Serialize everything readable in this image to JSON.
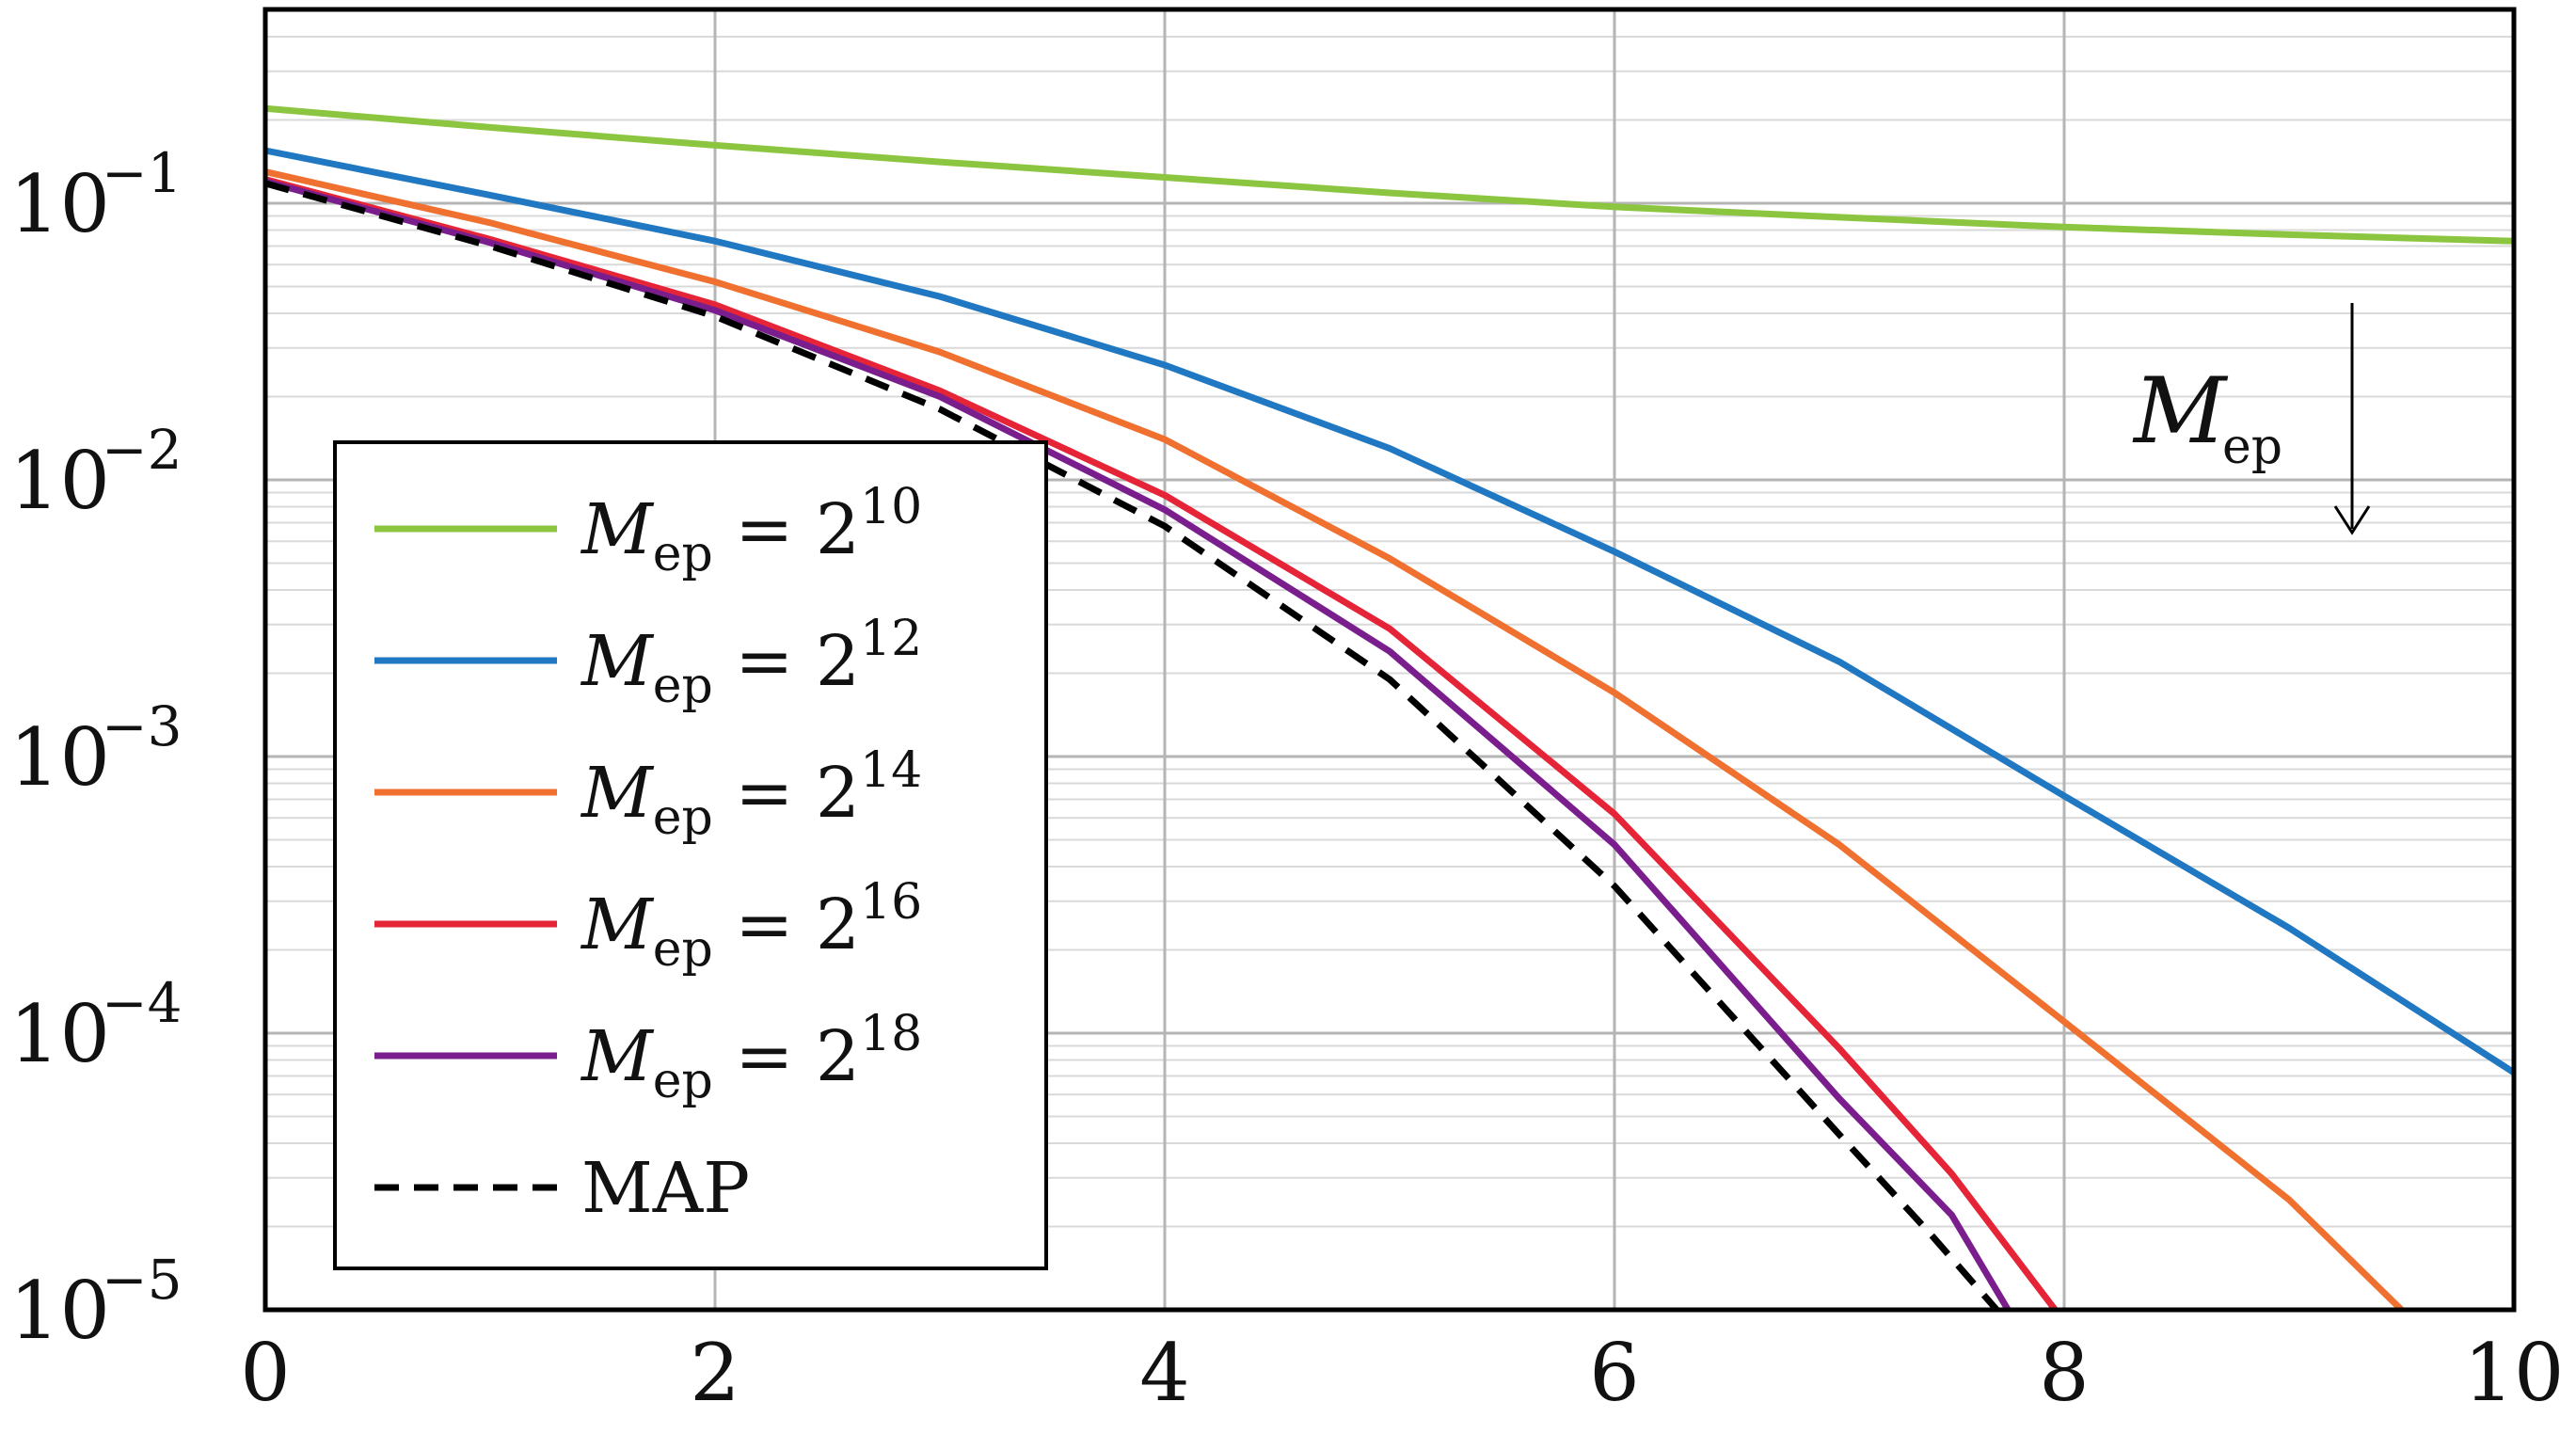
{
  "chart_data": {
    "type": "line",
    "title": "",
    "xlabel": "",
    "ylabel": "",
    "xlim": [
      0,
      10
    ],
    "ylim": [
      1e-05,
      0.5
    ],
    "yscale": "log",
    "grid": true,
    "legend_position": "center-left",
    "x_ticks": [
      "0",
      "2",
      "4",
      "6",
      "8",
      "10"
    ],
    "y_ticks": [
      {
        "base": "10",
        "exp": "−1",
        "value": 0.1
      },
      {
        "base": "10",
        "exp": "−2",
        "value": 0.01
      },
      {
        "base": "10",
        "exp": "−3",
        "value": 0.001
      },
      {
        "base": "10",
        "exp": "−4",
        "value": 0.0001
      },
      {
        "base": "10",
        "exp": "−5",
        "value": 1e-05
      }
    ],
    "annotation": {
      "main": "M",
      "sub": "ep",
      "arrow": "down"
    },
    "series": [
      {
        "name": "M_ep = 2^10",
        "label_main": "M",
        "label_sub": "ep",
        "label_rest": " = 2",
        "label_exp": "10",
        "color": "#8cc540",
        "style": "solid",
        "x": [
          0,
          1,
          2,
          3,
          4,
          5,
          6,
          7,
          8,
          9,
          10
        ],
        "y": [
          0.22,
          0.188,
          0.162,
          0.141,
          0.124,
          0.109,
          0.097,
          0.089,
          0.082,
          0.077,
          0.073
        ]
      },
      {
        "name": "M_ep = 2^12",
        "label_main": "M",
        "label_sub": "ep",
        "label_rest": " = 2",
        "label_exp": "12",
        "color": "#1f78c1",
        "style": "solid",
        "x": [
          0,
          1,
          2,
          3,
          4,
          5,
          6,
          7,
          8,
          9,
          10
        ],
        "y": [
          0.155,
          0.107,
          0.073,
          0.046,
          0.026,
          0.013,
          0.0055,
          0.0022,
          0.00072,
          0.00024,
          7.2e-05
        ]
      },
      {
        "name": "M_ep = 2^14",
        "label_main": "M",
        "label_sub": "ep",
        "label_rest": " = 2",
        "label_exp": "14",
        "color": "#f07030",
        "style": "solid",
        "x": [
          0,
          1,
          2,
          3,
          4,
          5,
          6,
          7,
          8,
          9,
          9.5
        ],
        "y": [
          0.13,
          0.085,
          0.052,
          0.029,
          0.014,
          0.0052,
          0.0017,
          0.00048,
          0.00011,
          2.5e-05,
          1e-05
        ]
      },
      {
        "name": "M_ep = 2^16",
        "label_main": "M",
        "label_sub": "ep",
        "label_rest": " = 2",
        "label_exp": "16",
        "color": "#e62437",
        "style": "solid",
        "x": [
          0,
          1,
          2,
          3,
          4,
          5,
          6,
          7,
          7.5,
          7.96
        ],
        "y": [
          0.122,
          0.074,
          0.043,
          0.021,
          0.0088,
          0.0029,
          0.00062,
          8.8e-05,
          3.1e-05,
          1e-05
        ]
      },
      {
        "name": "M_ep = 2^18",
        "label_main": "M",
        "label_sub": "ep",
        "label_rest": " = 2",
        "label_exp": "18",
        "color": "#7a1e8e",
        "style": "solid",
        "x": [
          0,
          1,
          2,
          3,
          4,
          5,
          6,
          7,
          7.5,
          7.75
        ],
        "y": [
          0.12,
          0.072,
          0.041,
          0.02,
          0.0078,
          0.0024,
          0.00048,
          5.8e-05,
          2.2e-05,
          1e-05
        ]
      },
      {
        "name": "MAP",
        "label_main": "MAP",
        "label_sub": "",
        "label_rest": "",
        "label_exp": "",
        "color": "#000000",
        "style": "dashed",
        "x": [
          0,
          1,
          2,
          3,
          4,
          5,
          6,
          7,
          7.4,
          7.7
        ],
        "y": [
          0.118,
          0.07,
          0.039,
          0.018,
          0.0068,
          0.0019,
          0.00034,
          4.3e-05,
          1.9e-05,
          1e-05
        ]
      }
    ]
  }
}
